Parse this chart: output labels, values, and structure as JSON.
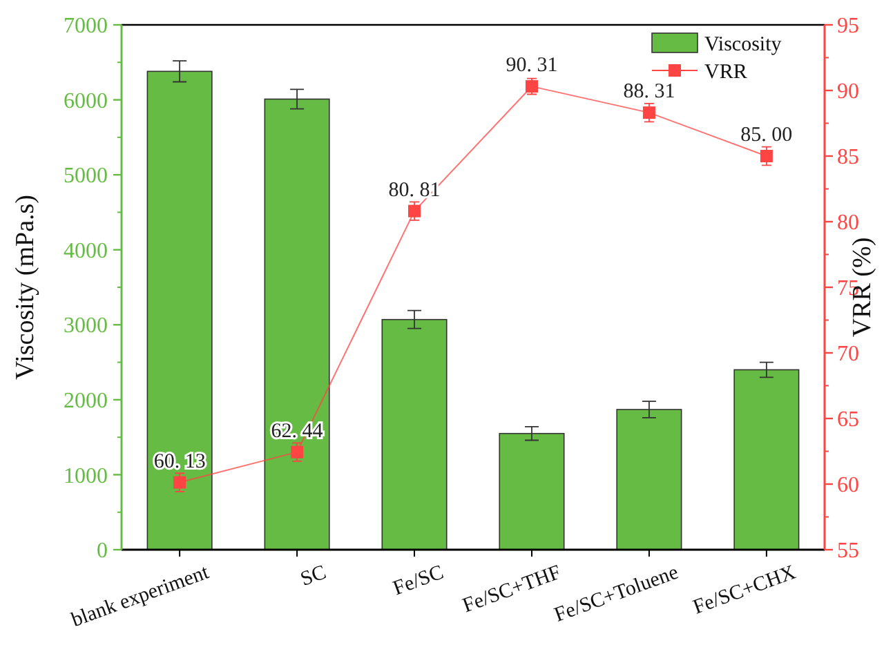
{
  "chart_data": {
    "type": "bar",
    "categories": [
      "blank experiment",
      "SC",
      "Fe/SC",
      "Fe/SC+THF",
      "Fe/SC+Toluene",
      "Fe/SC+CHX"
    ],
    "ylabel": "Viscosity (mPa.s)",
    "y2label": "VRR (%)",
    "ylim": [
      0,
      7000
    ],
    "yticks": [
      0,
      1000,
      2000,
      3000,
      4000,
      5000,
      6000,
      7000
    ],
    "y2lim": [
      55,
      95
    ],
    "y2ticks": [
      55,
      60,
      65,
      70,
      75,
      80,
      85,
      90,
      95
    ],
    "series": [
      {
        "name": "Viscosity",
        "color": "#66bb44",
        "values": [
          6380,
          6010,
          3070,
          1550,
          1870,
          2400
        ],
        "errors": [
          140,
          130,
          120,
          90,
          110,
          100
        ]
      },
      {
        "name": "VRR",
        "type": "line",
        "axis": "y2",
        "color": "#ff4444",
        "marker": "square",
        "values": [
          60.13,
          62.44,
          80.81,
          90.31,
          88.31,
          85.0
        ],
        "errors": [
          0.7,
          0.7,
          0.7,
          0.6,
          0.7,
          0.7
        ],
        "value_labels": [
          "60. 13",
          "62. 44",
          "80. 81",
          "90. 31",
          "88. 31",
          "85. 00"
        ]
      }
    ],
    "legend": "top right"
  }
}
